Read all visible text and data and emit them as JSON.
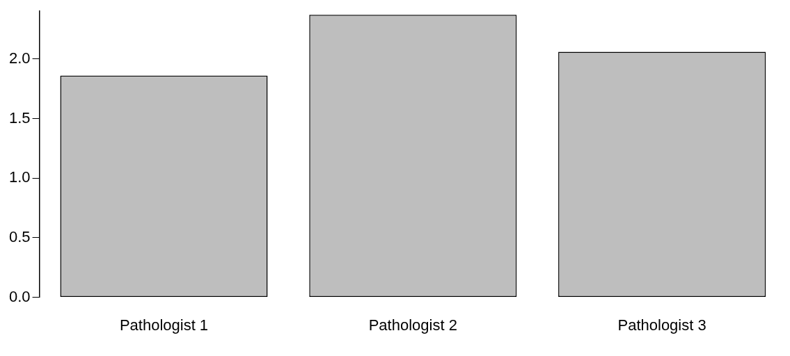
{
  "chart_data": {
    "type": "bar",
    "categories": [
      "Pathologist 1",
      "Pathologist 2",
      "Pathologist 3"
    ],
    "values": [
      1.86,
      2.37,
      2.06
    ],
    "color": "#bebebe",
    "ylim": [
      0,
      2.4
    ],
    "yticks": [
      {
        "value": 0,
        "label": "0.0"
      },
      0.5,
      {
        "value": 1,
        "label": "1.0"
      },
      1.5,
      {
        "value": 2,
        "label": "2.0"
      }
    ]
  }
}
